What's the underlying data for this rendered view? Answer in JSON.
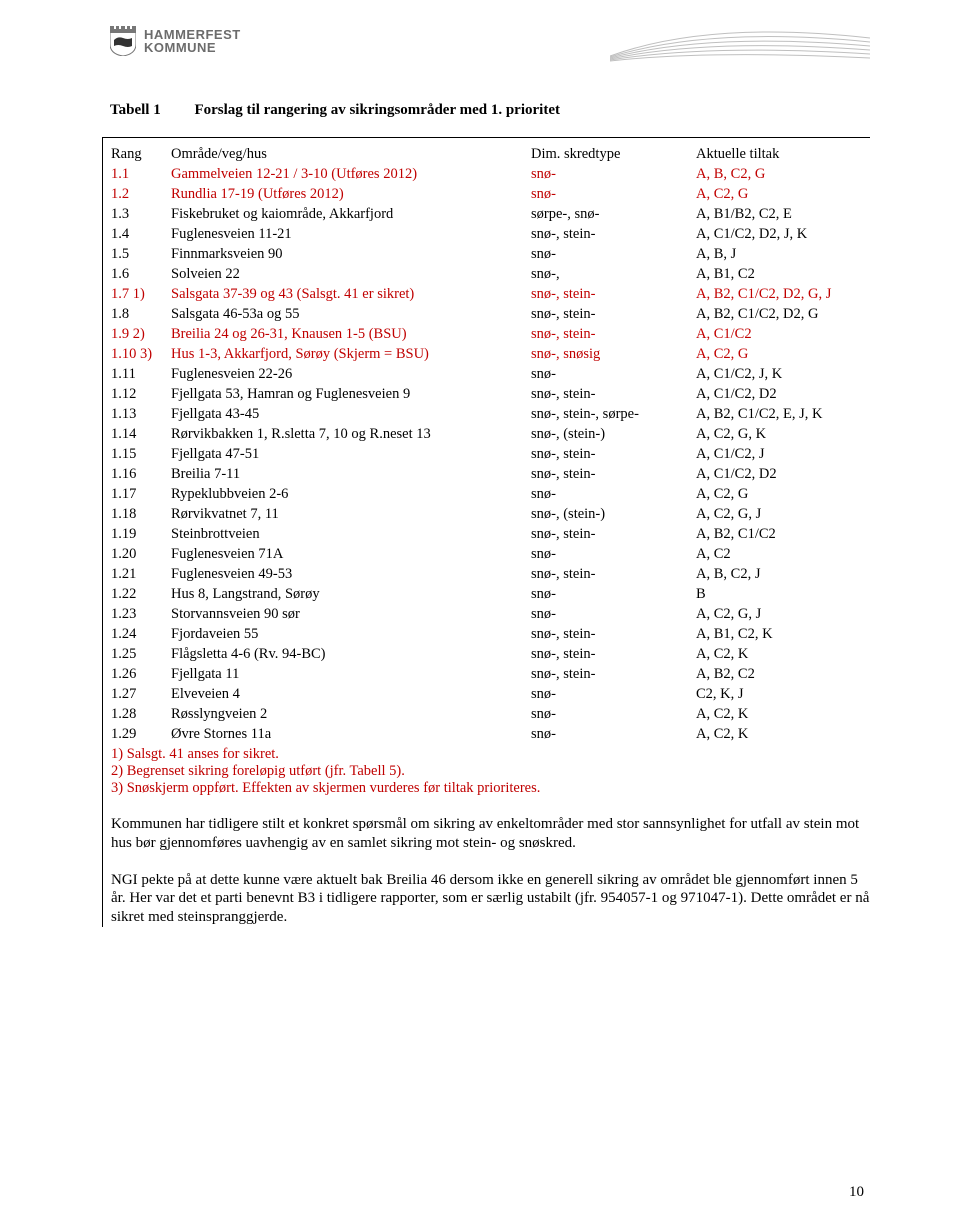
{
  "brand": {
    "line1": "HAMMERFEST",
    "line2": "KOMMUNE"
  },
  "caption": {
    "label": "Tabell 1",
    "text": "Forslag til rangering av sikringsområder med 1. prioritet"
  },
  "table": {
    "headers": {
      "rang": "Rang",
      "area": "Område/veg/hus",
      "type": "Dim. skredtype",
      "tiltak": "Aktuelle tiltak"
    },
    "rows": [
      {
        "rang": "1.1",
        "area": "Gammelveien 12-21 / 3-10 (Utføres 2012)",
        "type": "snø-",
        "tiltak": "A, B, C2, G",
        "red": true
      },
      {
        "rang": "1.2",
        "area": "Rundlia 17-19 (Utføres 2012)",
        "type": "snø-",
        "tiltak": "A, C2, G",
        "red": true
      },
      {
        "rang": "1.3",
        "area": "Fiskebruket og kaiområde, Akkarfjord",
        "type": "sørpe-, snø-",
        "tiltak": "A, B1/B2, C2, E"
      },
      {
        "rang": "1.4",
        "area": "Fuglenesveien 11-21",
        "type": "snø-, stein-",
        "tiltak": "A, C1/C2, D2, J, K"
      },
      {
        "rang": "1.5",
        "area": "Finnmarksveien 90",
        "type": "snø-",
        "tiltak": "A, B, J"
      },
      {
        "rang": "1.6",
        "area": "Solveien 22",
        "type": "snø-,",
        "tiltak": "A, B1, C2"
      },
      {
        "rang": "1.7 1)",
        "area": "Salsgata 37-39 og 43 (Salsgt. 41 er sikret)",
        "type": "snø-, stein-",
        "tiltak": "A, B2, C1/C2, D2, G, J",
        "red": true
      },
      {
        "rang": "1.8",
        "area": "Salsgata 46-53a og 55",
        "type": "snø-, stein-",
        "tiltak": "A, B2, C1/C2, D2, G"
      },
      {
        "rang": "1.9 2)",
        "area": "Breilia 24 og 26-31, Knausen 1-5 (BSU)",
        "type": "snø-, stein-",
        "tiltak": "A, C1/C2",
        "red": true
      },
      {
        "rang": "1.10 3)",
        "area": "Hus 1-3, Akkarfjord, Sørøy (Skjerm = BSU)",
        "type": "snø-, snøsig",
        "tiltak": "A, C2, G",
        "red": true
      },
      {
        "rang": "1.11",
        "area": "Fuglenesveien 22-26",
        "type": "snø-",
        "tiltak": "A, C1/C2, J, K"
      },
      {
        "rang": "1.12",
        "area": "Fjellgata 53, Hamran og Fuglenesveien 9",
        "type": "snø-, stein-",
        "tiltak": "A, C1/C2, D2"
      },
      {
        "rang": "1.13",
        "area": "Fjellgata 43-45",
        "type": "snø-, stein-, sørpe-",
        "tiltak": "A, B2, C1/C2, E, J, K"
      },
      {
        "rang": "1.14",
        "area": "Rørvikbakken 1, R.sletta 7, 10 og R.neset 13",
        "type": "snø-, (stein-)",
        "tiltak": "A, C2, G, K"
      },
      {
        "rang": "1.15",
        "area": "Fjellgata 47-51",
        "type": "snø-, stein-",
        "tiltak": "A, C1/C2, J"
      },
      {
        "rang": "1.16",
        "area": "Breilia 7-11",
        "type": "snø-, stein-",
        "tiltak": "A, C1/C2, D2"
      },
      {
        "rang": "1.17",
        "area": "Rypeklubbveien 2-6",
        "type": "snø-",
        "tiltak": "A, C2, G"
      },
      {
        "rang": "1.18",
        "area": "Rørvikvatnet 7, 11",
        "type": "snø-, (stein-)",
        "tiltak": "A, C2, G, J"
      },
      {
        "rang": "1.19",
        "area": "Steinbrottveien",
        "type": "snø-, stein-",
        "tiltak": "A, B2, C1/C2"
      },
      {
        "rang": "1.20",
        "area": "Fuglenesveien 71A",
        "type": "snø-",
        "tiltak": "A, C2"
      },
      {
        "rang": "1.21",
        "area": "Fuglenesveien 49-53",
        "type": "snø-, stein-",
        "tiltak": "A, B, C2, J"
      },
      {
        "rang": "1.22",
        "area": "Hus 8, Langstrand, Sørøy",
        "type": "snø-",
        "tiltak": "B"
      },
      {
        "rang": "1.23",
        "area": "Storvannsveien 90 sør",
        "type": "snø-",
        "tiltak": "A, C2, G, J"
      },
      {
        "rang": "1.24",
        "area": "Fjordaveien 55",
        "type": "snø-, stein-",
        "tiltak": "A, B1, C2, K"
      },
      {
        "rang": "1.25",
        "area": "Flågsletta 4-6 (Rv. 94-BC)",
        "type": "snø-, stein-",
        "tiltak": "A, C2, K"
      },
      {
        "rang": "1.26",
        "area": "Fjellgata 11",
        "type": "snø-, stein-",
        "tiltak": "A, B2, C2"
      },
      {
        "rang": "1.27",
        "area": "Elveveien 4",
        "type": "snø-",
        "tiltak": "C2, K, J"
      },
      {
        "rang": "1.28",
        "area": "Røsslyngveien 2",
        "type": "snø-",
        "tiltak": "A, C2, K"
      },
      {
        "rang": "1.29",
        "area": "Øvre Stornes 11a",
        "type": "snø-",
        "tiltak": "A, C2, K"
      }
    ]
  },
  "notes": {
    "n1": "1) Salsgt. 41 anses for sikret.",
    "n2": "2) Begrenset sikring foreløpig utført (jfr. Tabell 5).",
    "n3": "3) Snøskjerm oppført. Effekten av skjermen vurderes før tiltak prioriteres."
  },
  "para1": "Kommunen har tidligere stilt et konkret spørsmål om sikring av enkeltområder med stor sannsynlighet for utfall av stein mot hus bør gjennomføres uavhengig av en samlet sikring mot stein- og snøskred.",
  "para2": "NGI pekte på at dette kunne være aktuelt bak Breilia 46 dersom ikke en generell sikring av området ble gjennomført innen 5 år. Her var det et parti benevnt B3 i tidligere rapporter, som er særlig ustabilt (jfr. 954057-1 og 971047-1). Dette området er nå sikret med steinspranggjerde.",
  "pageNumber": "10"
}
